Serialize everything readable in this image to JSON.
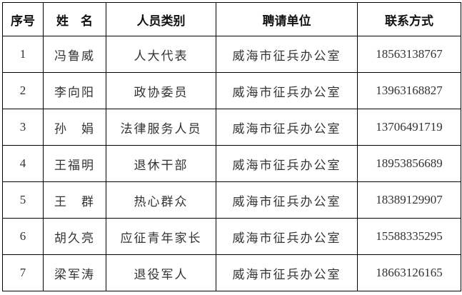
{
  "headers": [
    "序号",
    "姓　名",
    "人员类别",
    "聘请单位",
    "联系方式"
  ],
  "rows": [
    [
      "1",
      "冯鲁威",
      "人大代表",
      "威海市征兵办公室",
      "18563138767"
    ],
    [
      "2",
      "李向阳",
      "政协委员",
      "威海市征兵办公室",
      "13963168827"
    ],
    [
      "3",
      "孙　娟",
      "法律服务人员",
      "威海市征兵办公室",
      "13706491719"
    ],
    [
      "4",
      "王福明",
      "退休干部",
      "威海市征兵办公室",
      "18953856689"
    ],
    [
      "5",
      "王　群",
      "热心群众",
      "威海市征兵办公室",
      "18389129907"
    ],
    [
      "6",
      "胡久亮",
      "应征青年家长",
      "威海市征兵办公室",
      "15588335295"
    ],
    [
      "7",
      "梁军涛",
      "退役军人",
      "威海市征兵办公室",
      "18663126165"
    ]
  ]
}
